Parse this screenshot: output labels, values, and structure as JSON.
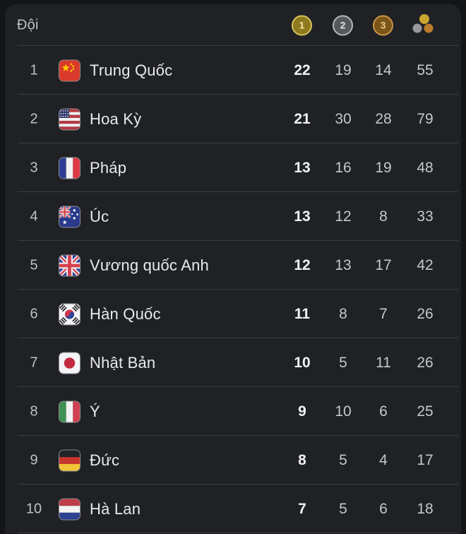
{
  "header": {
    "team_column_label": "Đội",
    "medal_columns": [
      {
        "id": "gold",
        "label": "1"
      },
      {
        "id": "silver",
        "label": "2"
      },
      {
        "id": "bronze",
        "label": "3"
      },
      {
        "id": "total",
        "label": "total-medals-icon"
      }
    ]
  },
  "rows": [
    {
      "rank": "1",
      "flag": "china",
      "country": "Trung Quốc",
      "gold": "22",
      "silver": "19",
      "bronze": "14",
      "total": "55"
    },
    {
      "rank": "2",
      "flag": "usa",
      "country": "Hoa Kỳ",
      "gold": "21",
      "silver": "30",
      "bronze": "28",
      "total": "79"
    },
    {
      "rank": "3",
      "flag": "france",
      "country": "Pháp",
      "gold": "13",
      "silver": "16",
      "bronze": "19",
      "total": "48"
    },
    {
      "rank": "4",
      "flag": "australia",
      "country": "Úc",
      "gold": "13",
      "silver": "12",
      "bronze": "8",
      "total": "33"
    },
    {
      "rank": "5",
      "flag": "uk",
      "country": "Vương quốc Anh",
      "gold": "12",
      "silver": "13",
      "bronze": "17",
      "total": "42"
    },
    {
      "rank": "6",
      "flag": "south-korea",
      "country": "Hàn Quốc",
      "gold": "11",
      "silver": "8",
      "bronze": "7",
      "total": "26"
    },
    {
      "rank": "7",
      "flag": "japan",
      "country": "Nhật Bản",
      "gold": "10",
      "silver": "5",
      "bronze": "11",
      "total": "26"
    },
    {
      "rank": "8",
      "flag": "italy",
      "country": "Ý",
      "gold": "9",
      "silver": "10",
      "bronze": "6",
      "total": "25"
    },
    {
      "rank": "9",
      "flag": "germany",
      "country": "Đức",
      "gold": "8",
      "silver": "5",
      "bronze": "4",
      "total": "17"
    },
    {
      "rank": "10",
      "flag": "netherlands",
      "country": "Hà Lan",
      "gold": "7",
      "silver": "5",
      "bronze": "6",
      "total": "18"
    }
  ],
  "colors": {
    "panel-bg": "#202124",
    "divider": "#3a3d41",
    "gold-ring": "#d8c35e",
    "gold-fill": "#8e7a1d",
    "gold-digit": "#efe3a4",
    "silver-ring": "#b4b7ba",
    "silver-fill": "#56585b",
    "silver-digit": "#dfe2e5",
    "bronze-ring": "#cb9549",
    "bronze-fill": "#7c5517",
    "bronze-digit": "#edc791",
    "dot-gold": "#c8a62f",
    "dot-silver": "#97999c",
    "dot-bronze": "#bb7c2e"
  }
}
